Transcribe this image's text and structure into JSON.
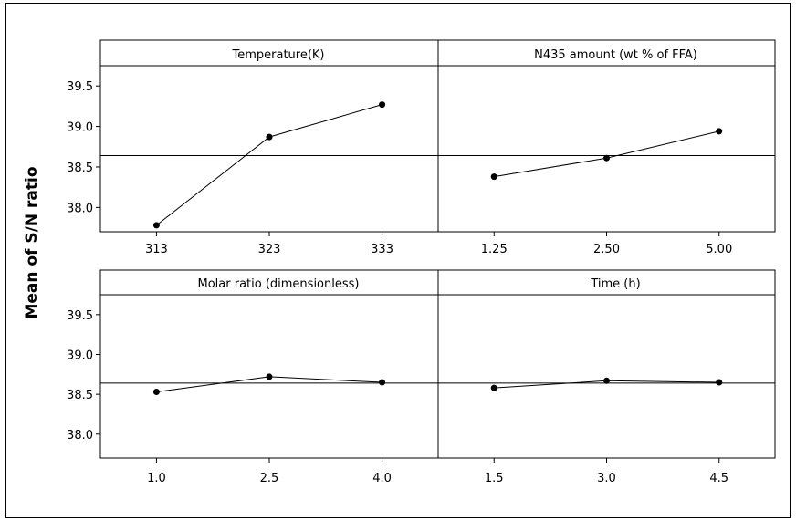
{
  "chart_data": {
    "type": "line",
    "ylabel": "Mean of S/N ratio",
    "ylim": [
      37.7,
      39.75
    ],
    "yticks": [
      "38.0",
      "38.5",
      "39.0",
      "39.5"
    ],
    "reference_line": 38.64,
    "grid": false,
    "panels": [
      {
        "title": "Temperature(K)",
        "categories": [
          "313",
          "323",
          "333"
        ],
        "values": [
          37.78,
          38.87,
          39.27
        ]
      },
      {
        "title": "N435 amount (wt % of FFA)",
        "categories": [
          "1.25",
          "2.50",
          "5.00"
        ],
        "values": [
          38.38,
          38.61,
          38.94
        ]
      },
      {
        "title": "Molar ratio (dimensionless)",
        "categories": [
          "1.0",
          "2.5",
          "4.0"
        ],
        "values": [
          38.53,
          38.72,
          38.65
        ]
      },
      {
        "title": "Time (h)",
        "categories": [
          "1.5",
          "3.0",
          "4.5"
        ],
        "values": [
          38.58,
          38.67,
          38.65
        ]
      }
    ]
  }
}
